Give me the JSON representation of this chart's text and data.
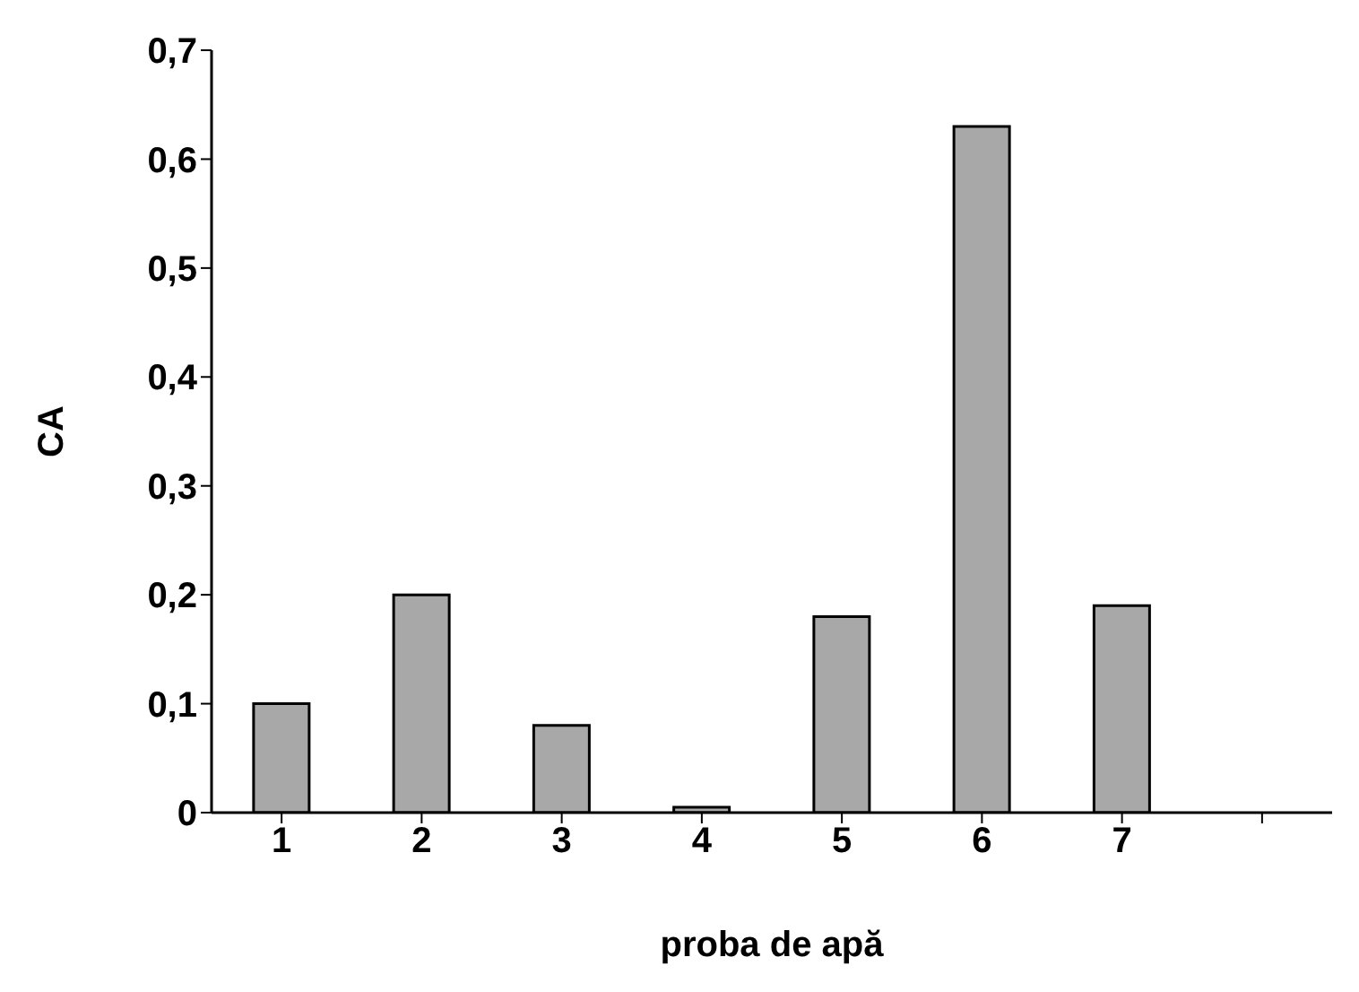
{
  "chart_data": {
    "type": "bar",
    "xlabel": "proba de apă",
    "ylabel": "CA",
    "categories": [
      "1",
      "2",
      "3",
      "4",
      "5",
      "6",
      "7",
      null
    ],
    "values": [
      0.1,
      0.2,
      0.08,
      0.005,
      0.18,
      0.63,
      0.19,
      null
    ],
    "color": "#a8a8a8",
    "ylim": [
      0,
      0.7
    ],
    "yticks": [
      0,
      {
        "value": 0.1,
        "label": "0,1"
      },
      {
        "value": 0.2,
        "label": "0,2"
      },
      {
        "value": 0.3,
        "label": "0,3"
      },
      {
        "value": 0.4,
        "label": "0,4"
      },
      {
        "value": 0.5,
        "label": "0,5"
      },
      {
        "value": 0.6,
        "label": "0,6"
      },
      {
        "value": 0.7,
        "label": "0,7"
      }
    ],
    "grid": false,
    "legend": false
  }
}
